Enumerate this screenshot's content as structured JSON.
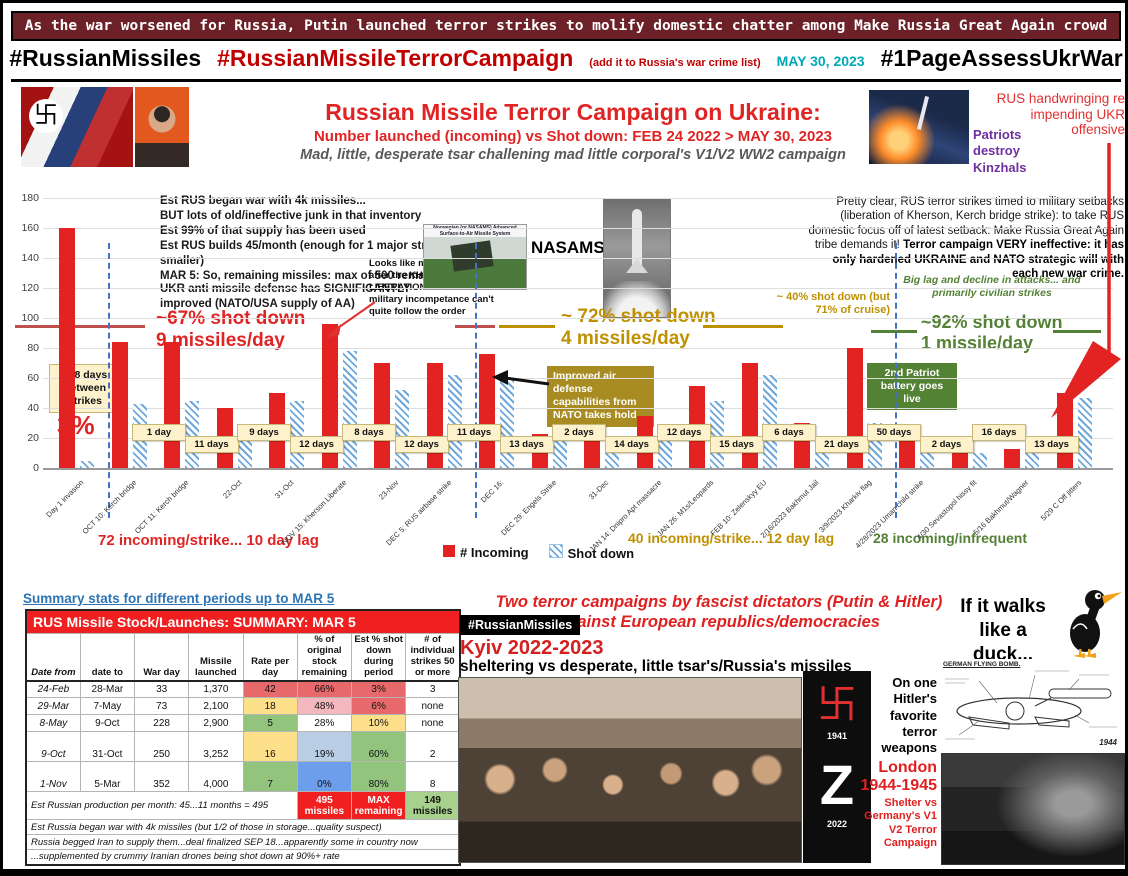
{
  "banner": {
    "text": "As the war worsened for Russia, Putin launched terror strikes to molify domestic chatter among Make Russia Great Again crowd"
  },
  "tagrow": {
    "tag1": "#RussianMissiles",
    "tag2": "#RussianMissileTerrorCampaign",
    "note": "(add it to Russia's war crime list)",
    "date": "MAY 30, 2023",
    "tag3": "#1PageAssessUkrWar"
  },
  "header": {
    "title": "Russian Missile Terror Campaign on Ukraine:",
    "subtitle": "Number launched (incoming) vs Shot down: FEB 24 2022 > MAY 30, 2023",
    "tagline": "Mad, little, desperate tsar challening mad little corporal's V1/V2 WW2 campaign",
    "patriot_caption": "Patriots destroy Kinzhals",
    "handwringing": "RUS handwringing re impending UKR offensive"
  },
  "right_note": {
    "normal": "Pretty clear, RUS terror strikes timed to military setbacks (liberation of Kherson, Kerch bridge strike): to take RUS domestic focus off of latest setback: Make Russia Great Again tribe demands it!",
    "bold": "Terror campaign VERY ineffective: it has only hardened UKRAINE and NATO strategic will with each new war crime."
  },
  "left_notes": {
    "supply": [
      "Est RUS began war with 4k missiles...",
      "BUT lots of old/ineffective junk in that inventory",
      "Est 99% of that supply has been used",
      "Est RUS builds 45/month (enough for 1 major strike...or 2 smaller)",
      "MAR 5: So, remaining missiles: max of 500 remain...min 200"
    ],
    "defense": "UKR anti missile defense has SIGNIFICANTLY improved (NATO/USA supply of AA)",
    "kherson": "Looks like m... every 14 days after the KHERSON LIBERATION...but usual FU RUS military incompetance can't quite follow the order"
  },
  "nasams": {
    "label": "NASAMS",
    "caption": "Norwegian (or NASAMS) Advanced Surface-to-Air Missile System"
  },
  "chart_data": {
    "type": "bar",
    "categories": [
      "Day 1 invasion",
      "OCT 10: Kerch bridge",
      "OCT 11: Kerch bridge",
      "22-Oct",
      "31-Oct",
      "NOV 15: Kherson Liberate",
      "23-Nov",
      "DEC 5: RUS airbase strike",
      "DEC 16:",
      "DEC 29: Engels Strike",
      "31-Dec",
      "JAN 14: Dnipro Apt massacre",
      "JAN 26: M1s/Leopards",
      "FEB 10: Zelenskyy EU",
      "2/16/2023 Bakhmut Jail",
      "3/9/2023 Kharkiv flag",
      "4/28/2023 Uman child strike",
      "4/30 Sevastopol hissy fit",
      "5/16 Bakhmut/Wagner",
      "5/29 C Off jitters"
    ],
    "series": [
      {
        "name": "# Incoming",
        "color": "#e32222",
        "values": [
          160,
          84,
          84,
          40,
          50,
          96,
          70,
          70,
          76,
          23,
          20,
          35,
          55,
          70,
          30,
          80,
          18,
          13,
          13,
          50
        ]
      },
      {
        "name": "Shot down",
        "color": "#5b9bd5",
        "values": [
          5,
          43,
          45,
          25,
          45,
          78,
          52,
          62,
          60,
          18,
          13,
          25,
          45,
          62,
          12,
          30,
          14,
          10,
          11,
          47
        ]
      }
    ],
    "gap_labels": [
      "",
      "1 day",
      "11 days",
      "9 days",
      "12 days",
      "8 days",
      "12 days",
      "11 days",
      "13 days",
      "2 days",
      "14 days",
      "12 days",
      "15 days",
      "6 days",
      "21 days",
      "50 days",
      "2 days",
      "16 days",
      "13 days"
    ],
    "divider_boundaries": [
      1,
      8,
      16
    ],
    "title": "Russian Missile Terror Campaign on Ukraine: Number launched (incoming) vs Shot down",
    "xlabel": "",
    "ylabel": "",
    "ylim": [
      0,
      180
    ],
    "ytick": 20,
    "grid": true,
    "legend_position": "bottom"
  },
  "chart_annotations": {
    "gap_first": "228 days between strikes",
    "first_pct": "3%",
    "period1_pct": "~67% shot down",
    "period1_rate": "9 missiles/day",
    "period1_stat": "72 incoming/strike... 10 day lag",
    "period2_pct": "~ 72% shot down",
    "period2_rate": "4 missiles/day",
    "period2_stat": "40 incoming/strike... 12 day lag",
    "period3_pct": "~92% shot down",
    "period3_rate": "1 missile/day",
    "period3_stat": "28 incoming/infrequent",
    "cruise_note": "~ 40% shot down (but 71% of cruise)",
    "decline_note": "Big lag and decline in attacks... and primarily civilian strikes",
    "nato_box": "Improved air defense capabilities from NATO takes hold",
    "patriot_box": "2nd Patriot battery goes live"
  },
  "summary": {
    "heading": "Summary stats for different periods up to MAR 5",
    "table_title": "RUS Missile Stock/Launches: SUMMARY: MAR 5",
    "headers": [
      "Date from",
      "date to",
      "War day",
      "Missile launched",
      "Rate per day",
      "% of original stock remaining",
      "Est % shot down during period",
      "# of individual strikes 50 or more"
    ],
    "cell_colors": {
      "red": "#e8696b",
      "yellow": "#ffe08a",
      "green": "#93c47d",
      "pink": "#f2b8bd",
      "blue_light": "#b9cde4",
      "blue": "#6d9eeb"
    },
    "rows": [
      {
        "cells": [
          "24-Feb",
          "28-Mar",
          "33",
          "1,370",
          "42",
          "66%",
          "3%",
          "3"
        ],
        "colors": [
          "",
          "",
          "",
          "",
          "red",
          "red",
          "red",
          ""
        ]
      },
      {
        "cells": [
          "29-Mar",
          "7-May",
          "73",
          "2,100",
          "18",
          "48%",
          "6%",
          "none"
        ],
        "colors": [
          "",
          "",
          "",
          "",
          "yellow",
          "pink",
          "red",
          ""
        ]
      },
      {
        "cells": [
          "8-May",
          "9-Oct",
          "228",
          "2,900",
          "5",
          "28%",
          "10%",
          "none"
        ],
        "colors": [
          "",
          "",
          "",
          "",
          "green",
          "",
          "yellow",
          ""
        ]
      },
      {
        "cells": [
          "9-Oct",
          "31-Oct",
          "250",
          "3,252",
          "16",
          "19%",
          "60%",
          "2"
        ],
        "colors": [
          "",
          "",
          "",
          "",
          "yellow",
          "blue_light",
          "green",
          ""
        ]
      },
      {
        "cells": [
          "1-Nov",
          "5-Mar",
          "352",
          "4,000",
          "7",
          "0%",
          "80%",
          "8"
        ],
        "colors": [
          "",
          "",
          "",
          "",
          "green",
          "blue",
          "green",
          ""
        ]
      }
    ],
    "footer": {
      "note": "Est Russian production per month: 45...11 months = 495",
      "stock": "495 missiles",
      "max": "MAX\nremaining",
      "remaining": "149 missiles"
    },
    "notes": [
      "Est Russia began war with 4k missiles (but 1/2 of those in storage...quality suspect)",
      "Russia begged Iran to supply them...deal finalized SEP 18...apparently some in country now",
      "...supplemented by crummy Iranian drones being shot down at 90%+ rate"
    ]
  },
  "bottom_middle": {
    "heading": "Two terror campaigns by fascist dictators (Putin & Hitler) against European republics/democracies",
    "tag": "#RussianMissiles",
    "kyiv": "Kyiv 2022-2023",
    "shelter": "sheltering vs desperate, little tsar's/Russia's missiles"
  },
  "bottom_right": {
    "duck": "If it walks like a duck...",
    "hitler_weapons": "On one Hitler's favorite terror weapons",
    "panel_year1": "1941",
    "panel_z": "Z",
    "panel_year2": "2022",
    "london_title": "London 1944-1945",
    "london_sub": "Shelter vs Germany's V1 V2 Terror Campaign",
    "v1_title": "GERMAN FLYING BOMB.",
    "v1_year": "1944"
  },
  "colors": {
    "accent_red": "#c00000",
    "teal_date": "#00a8b8",
    "gold": "#bf9000",
    "green": "#538135",
    "bar_red": "#e32222",
    "bar_blue": "#5b9bd5",
    "banner_bg": "#6b2127"
  }
}
